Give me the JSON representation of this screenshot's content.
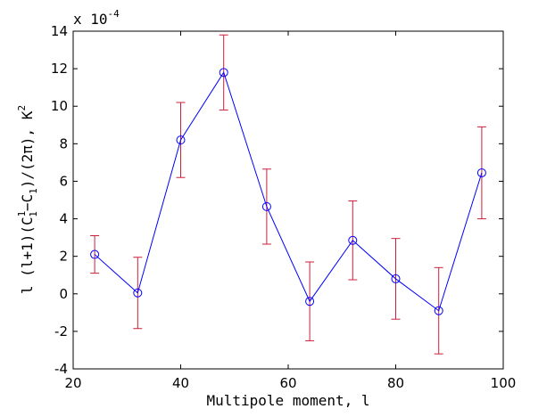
{
  "chart_data": {
    "type": "scatter",
    "title": "",
    "xlabel": "Multipole moment, l",
    "ylabel": "l (l+1)(C¹₁−C₁)/(2π), K²",
    "ylabel_parts": {
      "prefix": "l (l+1)(C",
      "sup1": "1",
      "sub1": "1",
      "middle": "−C",
      "sub2": "1",
      "suffix": ")/(2π), K",
      "sup2": "2"
    },
    "y_multiplier_label": "x 10",
    "y_multiplier_exponent": "-4",
    "xlim": [
      20,
      100
    ],
    "ylim": [
      -4,
      14
    ],
    "x_ticks": [
      20,
      40,
      60,
      80,
      100
    ],
    "y_ticks": [
      -4,
      -2,
      0,
      2,
      4,
      6,
      8,
      10,
      12,
      14
    ],
    "grid": false,
    "legend": "none",
    "series_color": "#0000ff",
    "errorbar_color": "#cc1f3b",
    "series": [
      {
        "marker": "circle",
        "line": "solid",
        "x": [
          24,
          32,
          40,
          48,
          56,
          64,
          72,
          80,
          88,
          96
        ],
        "y": [
          2.1,
          0.05,
          8.2,
          11.8,
          4.65,
          -0.4,
          2.85,
          0.8,
          -0.9,
          6.45
        ],
        "err_lower": [
          1.0,
          1.9,
          2.0,
          2.0,
          2.0,
          2.1,
          2.1,
          2.15,
          2.3,
          2.45
        ],
        "err_upper": [
          1.0,
          1.9,
          2.0,
          2.0,
          2.0,
          2.1,
          2.1,
          2.15,
          2.3,
          2.45
        ]
      }
    ]
  }
}
